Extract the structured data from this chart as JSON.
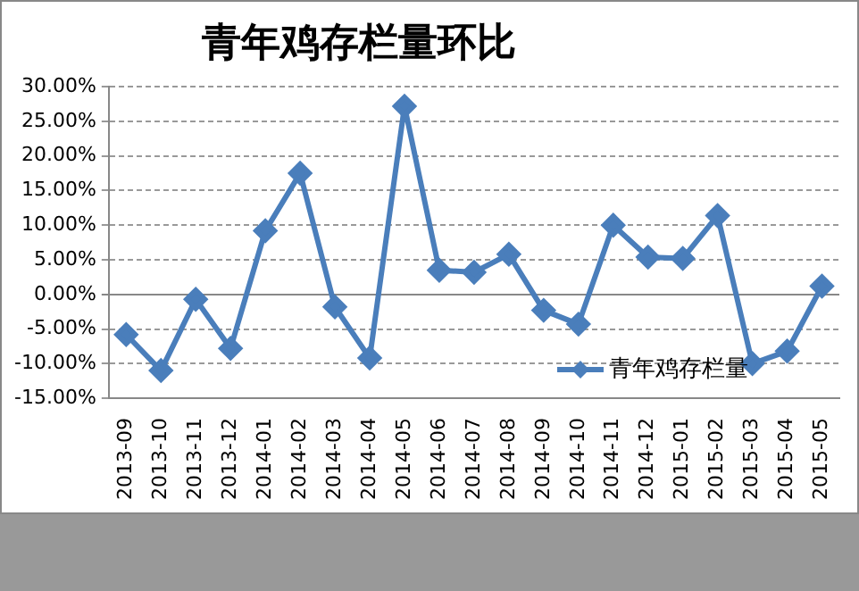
{
  "chart_data": {
    "type": "line",
    "title": "青年鸡存栏量环比",
    "categories": [
      "2013-09",
      "2013-10",
      "2013-11",
      "2013-12",
      "2014-01",
      "2014-02",
      "2014-03",
      "2014-04",
      "2014-05",
      "2014-06",
      "2014-07",
      "2014-08",
      "2014-09",
      "2014-10",
      "2014-11",
      "2014-12",
      "2015-01",
      "2015-02",
      "2015-03",
      "2015-04",
      "2015-05"
    ],
    "series": [
      {
        "name": "青年鸡存栏量",
        "color": "#4a7ebb",
        "values": [
          -5.8,
          -11.0,
          -0.7,
          -7.8,
          9.2,
          17.5,
          -1.8,
          -9.2,
          27.2,
          3.5,
          3.2,
          5.8,
          -2.3,
          -4.3,
          10.0,
          5.4,
          5.2,
          11.4,
          -10.0,
          -8.2,
          1.2
        ]
      }
    ],
    "ylim": [
      -15,
      30
    ],
    "yticks": [
      {
        "value": -15,
        "label": "-15.00%"
      },
      {
        "value": -10,
        "label": "-10.00%"
      },
      {
        "value": -5,
        "label": "-5.00%"
      },
      {
        "value": 0,
        "label": "0.00%"
      },
      {
        "value": 5,
        "label": "5.00%"
      },
      {
        "value": 10,
        "label": "10.00%"
      },
      {
        "value": 15,
        "label": "15.00%"
      },
      {
        "value": 20,
        "label": "20.00%"
      },
      {
        "value": 25,
        "label": "25.00%"
      },
      {
        "value": 30,
        "label": "30.00%"
      }
    ],
    "grid": "y",
    "legend": "bottom right",
    "marker": "diamond",
    "line_style": "solid"
  }
}
